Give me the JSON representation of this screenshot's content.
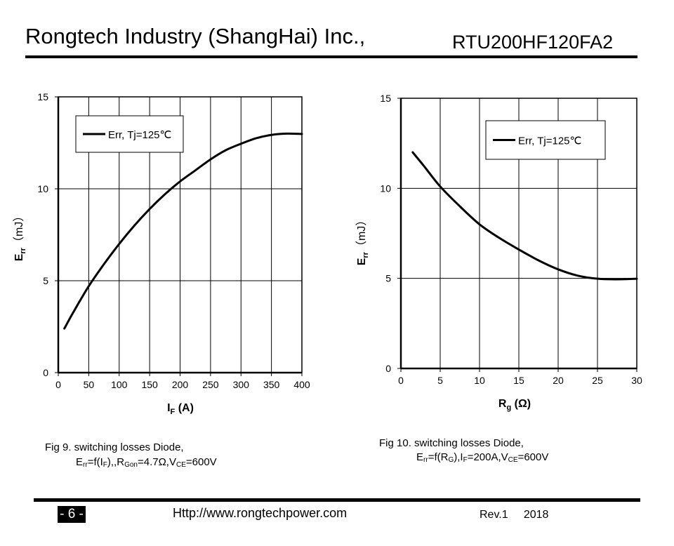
{
  "header": {
    "company": "Rongtech Industry (ShangHai) Inc.,",
    "part_number": "RTU200HF120FA2"
  },
  "footer": {
    "page": "- 6 -",
    "url": "Http://www.rongtechpower.com",
    "revision": "Rev.1     2018"
  },
  "captions": {
    "fig9_title": "Fig 9. switching losses Diode,",
    "fig9_params": {
      "a": "E",
      "a_sub": "rr",
      "b": "=f(I",
      "b_sub": "F",
      "c": "),,R",
      "c_sub": "Gon",
      "d": "=4.7Ω,V",
      "d_sub": "CE",
      "e": "=600V"
    },
    "fig10_title": "Fig 10. switching losses Diode,",
    "fig10_params": {
      "a": "E",
      "a_sub": "rr",
      "b": "=f(R",
      "b_sub": "G",
      "c": "),I",
      "c_sub": "F",
      "d": "=200A,V",
      "d_sub": "CE",
      "e": "=600V"
    }
  },
  "chart_data": [
    {
      "type": "line",
      "xlabel": "I",
      "xlabel_sub": "F",
      "xlabel_unit": " (A)",
      "ylabel": "E",
      "ylabel_sub": "rr",
      "ylabel_unit": "（mJ）",
      "xlim": [
        0,
        400
      ],
      "ylim": [
        0,
        15
      ],
      "xticks": [
        "0",
        "50",
        "100",
        "150",
        "200",
        "250",
        "300",
        "350",
        "400"
      ],
      "yticks": [
        "0",
        "5",
        "10",
        "15"
      ],
      "grid": true,
      "legend_position": "top-left",
      "series": [
        {
          "name": "Err, Tj=125℃",
          "color": "#000000",
          "x": [
            10,
            25,
            50,
            75,
            100,
            125,
            150,
            175,
            200,
            225,
            250,
            275,
            300,
            325,
            350,
            375,
            400
          ],
          "y": [
            2.4,
            3.3,
            4.7,
            5.9,
            7.0,
            8.0,
            8.9,
            9.7,
            10.4,
            11.0,
            11.6,
            12.1,
            12.45,
            12.75,
            12.93,
            13.0,
            12.98
          ]
        }
      ]
    },
    {
      "type": "line",
      "xlabel": "R",
      "xlabel_sub": "g",
      "xlabel_unit": " (Ω)",
      "ylabel": "E",
      "ylabel_sub": "rr",
      "ylabel_unit": "（mJ）",
      "xlim": [
        0,
        30
      ],
      "ylim": [
        0,
        15
      ],
      "xticks": [
        "0",
        "5",
        "10",
        "15",
        "20",
        "25",
        "30"
      ],
      "yticks": [
        "0",
        "5",
        "10",
        "15"
      ],
      "grid": true,
      "legend_position": "top-right",
      "series": [
        {
          "name": "Err, Tj=125℃",
          "color": "#000000",
          "x": [
            1.5,
            3,
            5,
            7.5,
            10,
            12.5,
            15,
            17.5,
            20,
            22.5,
            25,
            27.5,
            30
          ],
          "y": [
            12.0,
            11.2,
            10.1,
            9.0,
            8.0,
            7.25,
            6.6,
            6.0,
            5.5,
            5.15,
            4.98,
            4.95,
            4.98
          ]
        }
      ]
    }
  ]
}
